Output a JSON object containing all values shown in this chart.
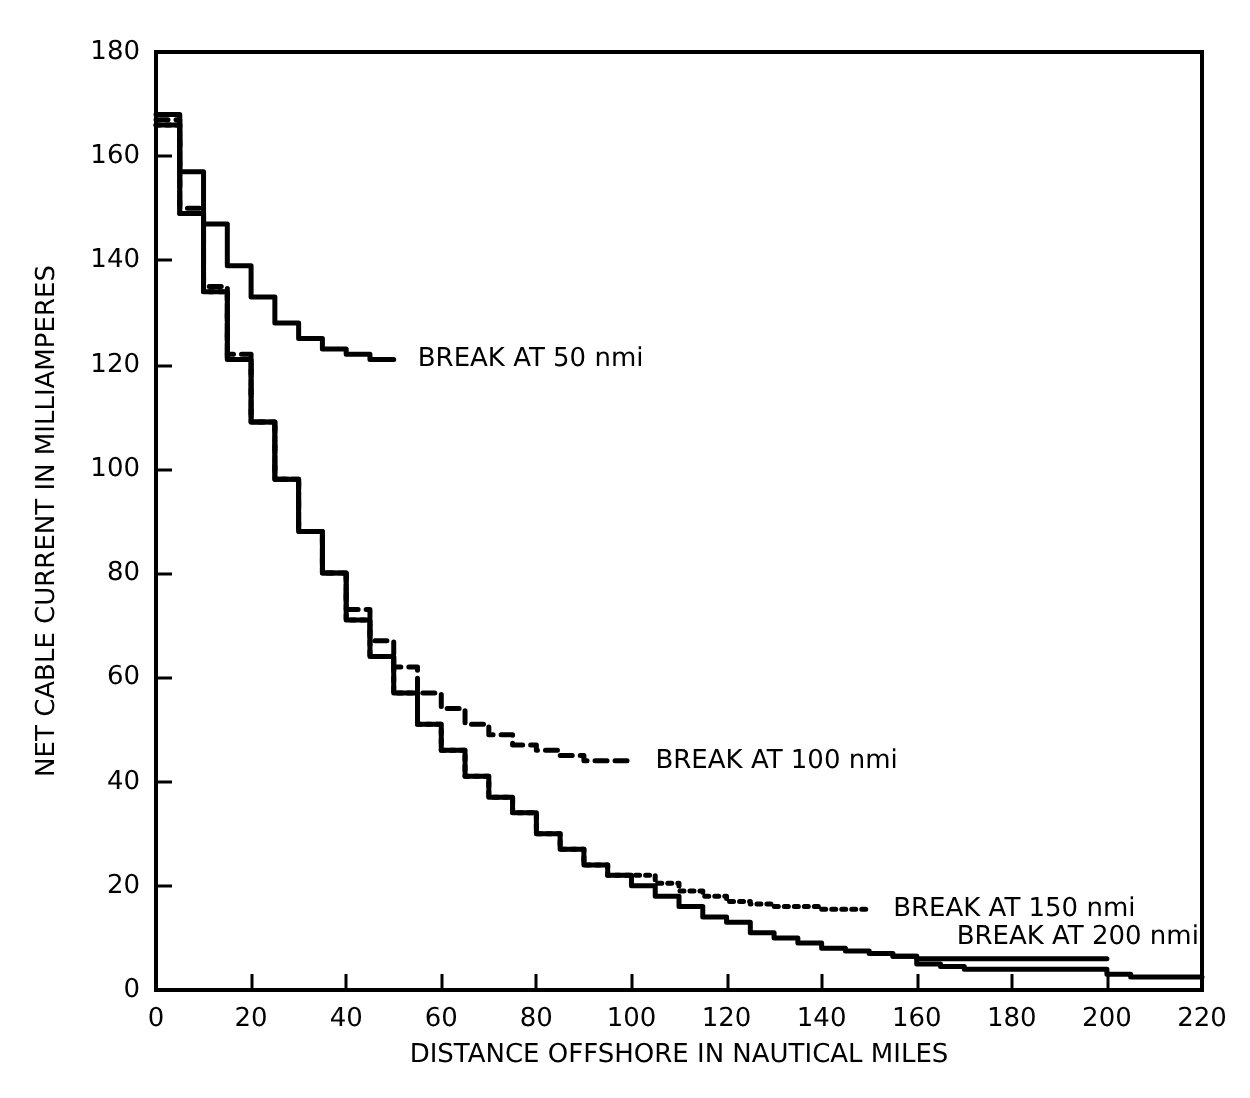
{
  "chart_data": {
    "type": "step",
    "xlabel": "DISTANCE OFFSHORE IN NAUTICAL MILES",
    "ylabel": "NET CABLE CURRENT IN MILLIAMPERES",
    "xlim": [
      0,
      220
    ],
    "xticks": [
      0,
      20,
      40,
      60,
      80,
      100,
      120,
      140,
      160,
      180,
      200,
      220
    ],
    "ylim": [
      0,
      180
    ],
    "yticks": [
      0,
      20,
      40,
      60,
      80,
      100,
      120,
      140,
      160,
      180
    ],
    "grid": false,
    "legend": false,
    "marker": "none",
    "series": [
      {
        "name": "BREAK AT 50 nmi",
        "color": "#000000",
        "line_style": "solid",
        "x": [
          0,
          5,
          10,
          15,
          20,
          25,
          30,
          35,
          40,
          45,
          50
        ],
        "values": [
          168,
          157,
          147,
          139,
          133,
          128,
          125,
          123,
          122,
          121,
          121
        ]
      },
      {
        "name": "BREAK AT 100 nmi",
        "color": "#000000",
        "line_style": "dashed",
        "x": [
          0,
          5,
          10,
          15,
          20,
          25,
          30,
          35,
          40,
          45,
          50,
          55,
          60,
          65,
          70,
          75,
          80,
          85,
          90,
          95,
          100
        ],
        "values": [
          167,
          150,
          135,
          122,
          109,
          98,
          88,
          80,
          73,
          67,
          62,
          57,
          54,
          51,
          49,
          47,
          46,
          45,
          44,
          44,
          44
        ]
      },
      {
        "name": "BREAK AT 150 nmi",
        "color": "#000000",
        "line_style": "dotted",
        "x": [
          0,
          5,
          10,
          15,
          20,
          25,
          30,
          35,
          40,
          45,
          50,
          55,
          60,
          65,
          70,
          75,
          80,
          85,
          90,
          95,
          100,
          105,
          110,
          115,
          120,
          125,
          130,
          135,
          140,
          145,
          150
        ],
        "values": [
          166,
          149,
          134,
          121,
          109,
          98,
          88,
          80,
          71,
          64,
          57,
          51,
          46,
          41,
          37,
          34,
          30,
          27,
          24,
          22,
          22,
          20.5,
          19,
          18,
          17,
          16.5,
          16,
          16,
          15.5,
          15.5,
          15.5
        ]
      },
      {
        "name": "BREAK AT 200 nmi",
        "color": "#000000",
        "line_style": "solid",
        "x": [
          0,
          5,
          10,
          15,
          20,
          25,
          30,
          35,
          40,
          45,
          50,
          55,
          60,
          65,
          70,
          75,
          80,
          85,
          90,
          95,
          100,
          105,
          110,
          115,
          120,
          125,
          130,
          135,
          140,
          145,
          150,
          155,
          160,
          165,
          170,
          175,
          180,
          185,
          190,
          195,
          200
        ],
        "values": [
          166,
          149,
          134,
          121,
          109,
          98,
          88,
          80,
          71,
          64,
          57,
          51,
          46,
          41,
          37,
          34,
          30,
          27,
          24,
          22,
          20,
          18,
          16,
          14,
          13,
          11,
          10,
          9,
          8,
          7.5,
          7,
          6.5,
          6,
          6,
          6,
          6,
          6,
          6,
          6,
          6,
          6
        ]
      },
      {
        "color": "#000000",
        "line_style": "solid",
        "x": [
          155,
          160,
          165,
          170,
          175,
          180,
          185,
          190,
          195,
          200,
          205,
          210,
          215,
          220
        ],
        "values": [
          6.5,
          5,
          4.5,
          4,
          4,
          4,
          4,
          4,
          4,
          3,
          2.5,
          2.5,
          2.5,
          2.5
        ]
      }
    ]
  }
}
